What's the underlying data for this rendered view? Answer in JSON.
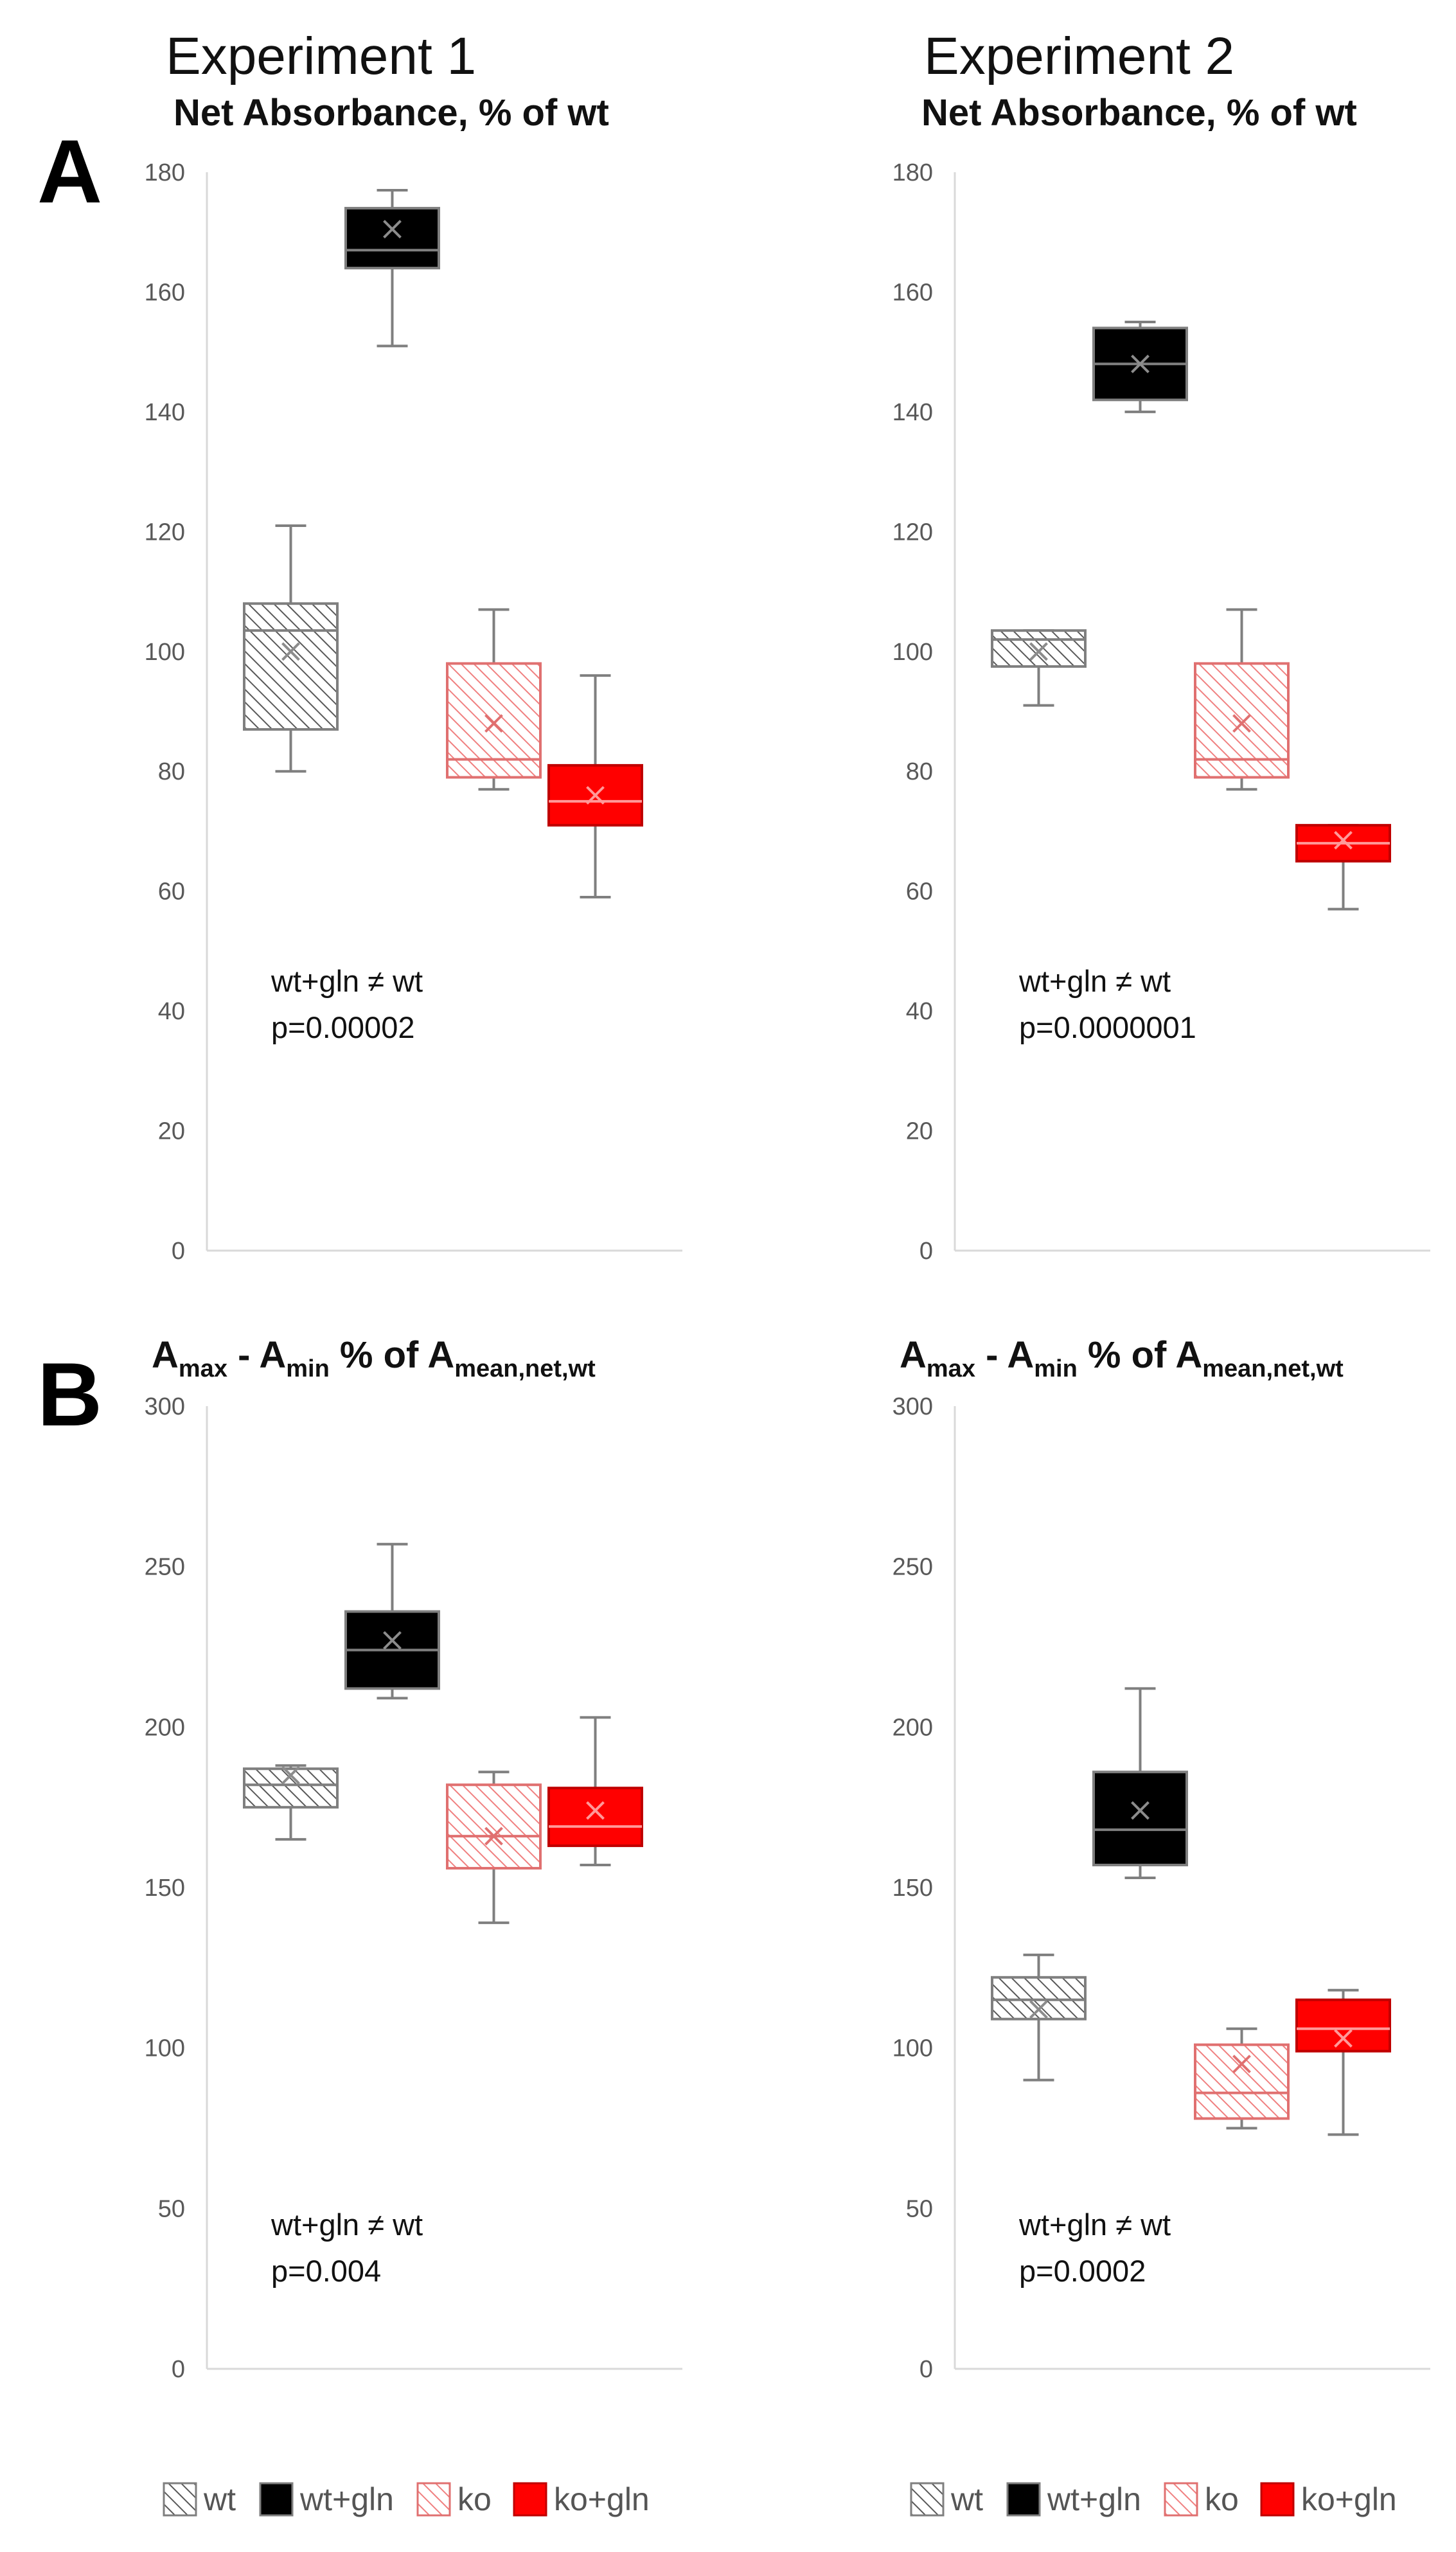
{
  "colors": {
    "wt": "#bfbfbf",
    "wt_gln": "#000000",
    "ko": "#f4b6b6",
    "ko_gln": "#ff0000",
    "axis": "#d9d9d9",
    "whisker": "#7f7f7f"
  },
  "panels": {
    "A": "A",
    "B": "B"
  },
  "experiments": [
    "Experiment 1",
    "Experiment 2"
  ],
  "legend": [
    {
      "label": "wt",
      "key": "wt"
    },
    {
      "label": "wt+gln",
      "key": "wt_gln"
    },
    {
      "label": "ko",
      "key": "ko"
    },
    {
      "label": "ko+gln",
      "key": "ko_gln"
    }
  ],
  "chart_data": [
    {
      "type": "box",
      "experiment": "Experiment 1",
      "panel": "A",
      "title": "Net Absorbance, % of wt",
      "ylim": [
        0,
        180
      ],
      "yticks": [
        0,
        20,
        40,
        60,
        80,
        100,
        120,
        140,
        160,
        180
      ],
      "grid": false,
      "annotation": [
        "wt+gln ≠ wt",
        "p=0.00002"
      ],
      "series": [
        {
          "name": "wt",
          "min": 80,
          "q1": 87,
          "median": 103.5,
          "q3": 108,
          "max": 121,
          "mean": 100
        },
        {
          "name": "wt+gln",
          "min": 151,
          "q1": 164,
          "median": 167,
          "q3": 174,
          "max": 177,
          "mean": 170.5
        },
        {
          "name": "ko",
          "min": 77,
          "q1": 79,
          "median": 82,
          "q3": 98,
          "max": 107,
          "mean": 88
        },
        {
          "name": "ko+gln",
          "min": 59,
          "q1": 71,
          "median": 75,
          "q3": 81,
          "max": 96,
          "mean": 76
        }
      ]
    },
    {
      "type": "box",
      "experiment": "Experiment 2",
      "panel": "A",
      "title": "Net Absorbance, % of wt",
      "ylim": [
        0,
        180
      ],
      "yticks": [
        0,
        20,
        40,
        60,
        80,
        100,
        120,
        140,
        160,
        180
      ],
      "grid": false,
      "annotation": [
        "wt+gln ≠ wt",
        "p=0.0000001"
      ],
      "series": [
        {
          "name": "wt",
          "min": 91,
          "q1": 97.5,
          "median": 102,
          "q3": 103.5,
          "max": 103.5,
          "mean": 100
        },
        {
          "name": "wt+gln",
          "min": 140,
          "q1": 142,
          "median": 148,
          "q3": 154,
          "max": 155,
          "mean": 148
        },
        {
          "name": "ko",
          "min": 77,
          "q1": 79,
          "median": 82,
          "q3": 98,
          "max": 107,
          "mean": 88
        },
        {
          "name": "ko+gln",
          "min": 57,
          "q1": 65,
          "median": 68,
          "q3": 71,
          "max": 71,
          "mean": 68.5
        }
      ]
    },
    {
      "type": "box",
      "experiment": "Experiment 1",
      "panel": "B",
      "title": {
        "a1": "A",
        "s1": "max",
        "m1": " - ",
        "a2": "A",
        "s2": "min",
        "m2": " % of ",
        "a3": "A",
        "s3": "mean,net,wt"
      },
      "ylim": [
        0,
        300
      ],
      "yticks": [
        0,
        50,
        100,
        150,
        200,
        250,
        300
      ],
      "grid": false,
      "annotation": [
        "wt+gln ≠ wt",
        "p=0.004"
      ],
      "series": [
        {
          "name": "wt",
          "min": 165,
          "q1": 175,
          "median": 182,
          "q3": 187,
          "max": 188,
          "mean": 185
        },
        {
          "name": "wt+gln",
          "min": 209,
          "q1": 212,
          "median": 224,
          "q3": 236,
          "max": 257,
          "mean": 227
        },
        {
          "name": "ko",
          "min": 139,
          "q1": 156,
          "median": 166,
          "q3": 182,
          "max": 186,
          "mean": 166
        },
        {
          "name": "ko+gln",
          "min": 157,
          "q1": 163,
          "median": 169,
          "q3": 181,
          "max": 203,
          "mean": 174
        }
      ]
    },
    {
      "type": "box",
      "experiment": "Experiment 2",
      "panel": "B",
      "title": {
        "a1": "A",
        "s1": "max",
        "m1": " - ",
        "a2": "A",
        "s2": "min",
        "m2": " % of ",
        "a3": "A",
        "s3": "mean,net,wt"
      },
      "ylim": [
        0,
        300
      ],
      "yticks": [
        0,
        50,
        100,
        150,
        200,
        250,
        300
      ],
      "grid": false,
      "annotation": [
        "wt+gln ≠ wt",
        "p=0.0002"
      ],
      "series": [
        {
          "name": "wt",
          "min": 90,
          "q1": 109,
          "median": 115,
          "q3": 122,
          "max": 129,
          "mean": 112
        },
        {
          "name": "wt+gln",
          "min": 153,
          "q1": 157,
          "median": 168,
          "q3": 186,
          "max": 212,
          "mean": 174
        },
        {
          "name": "ko",
          "min": 75,
          "q1": 78,
          "median": 86,
          "q3": 101,
          "max": 106,
          "mean": 95
        },
        {
          "name": "ko+gln",
          "min": 73,
          "q1": 99,
          "median": 106,
          "q3": 115,
          "max": 118,
          "mean": 103
        }
      ]
    }
  ]
}
